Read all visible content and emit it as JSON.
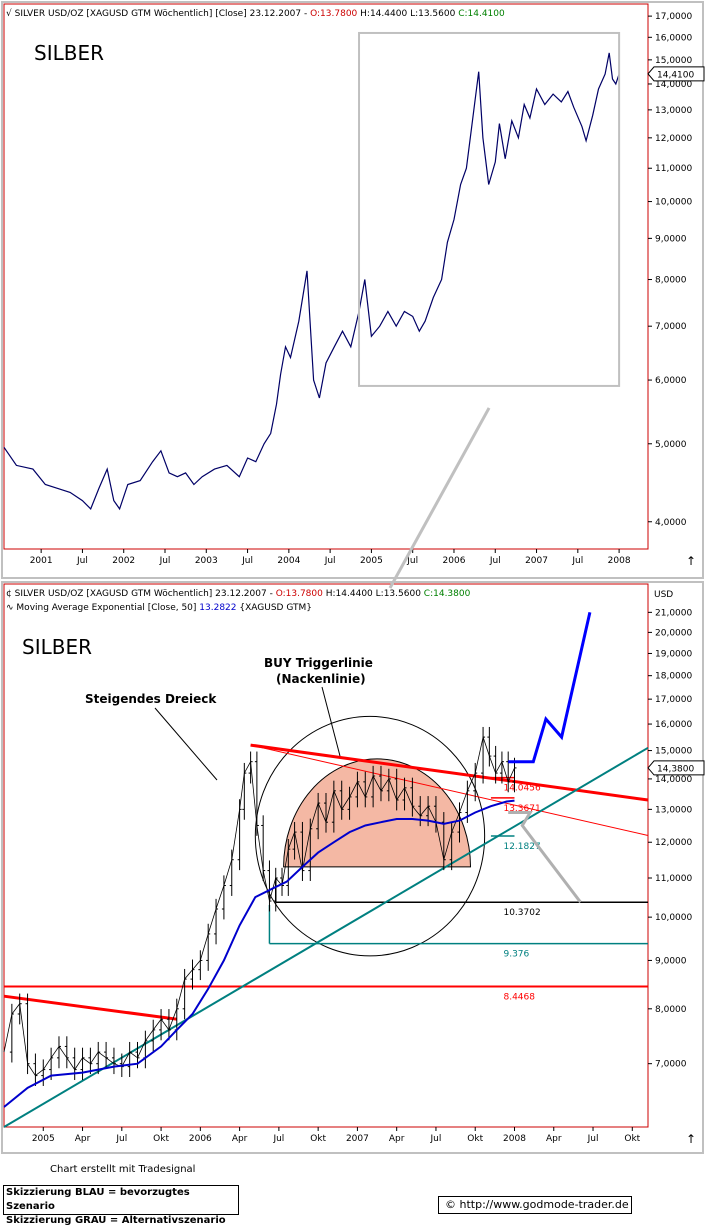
{
  "chart_data": [
    {
      "type": "line",
      "header": {
        "prefix": "SILVER USD/OZ [XAGUSD GTM  Wöchentlich] [Close] 23.12.2007 - ",
        "open": "O:13.7800",
        "high": "H:14.4400",
        "low": "L:13.5600",
        "close": "C:14.4100"
      },
      "label": "SILBER",
      "scale": "log",
      "ylim": [
        3.7,
        17.6
      ],
      "yticks": [
        "17,0000",
        "16,0000",
        "15,0000",
        "14,0000",
        "13,0000",
        "12,0000",
        "11,0000",
        "10,0000",
        "9,0000",
        "8,0000",
        "7,0000",
        "6,0000",
        "5,0000",
        "4,0000"
      ],
      "ytick_values": [
        17,
        16,
        15,
        14,
        13,
        12,
        11,
        10,
        9,
        8,
        7,
        6,
        5,
        4
      ],
      "last_price": "14,4100",
      "last_value": 14.41,
      "xticks": [
        "2001",
        "Jul",
        "2002",
        "Jul",
        "2003",
        "Jul",
        "2004",
        "Jul",
        "2005",
        "Jul",
        "2006",
        "Jul",
        "2007",
        "Jul",
        "2008"
      ],
      "xtick_years": [
        2001.0,
        2001.5,
        2002.0,
        2002.5,
        2003.0,
        2003.5,
        2004.0,
        2004.5,
        2005.0,
        2005.5,
        2006.0,
        2006.5,
        2007.0,
        2007.5,
        2008.0
      ],
      "xlim": [
        2000.55,
        2008.35
      ],
      "series_points": [
        [
          2000.55,
          4.95
        ],
        [
          2000.7,
          4.7
        ],
        [
          2000.9,
          4.65
        ],
        [
          2001.05,
          4.45
        ],
        [
          2001.2,
          4.4
        ],
        [
          2001.35,
          4.35
        ],
        [
          2001.5,
          4.25
        ],
        [
          2001.6,
          4.15
        ],
        [
          2001.7,
          4.4
        ],
        [
          2001.8,
          4.65
        ],
        [
          2001.88,
          4.25
        ],
        [
          2001.95,
          4.15
        ],
        [
          2002.05,
          4.45
        ],
        [
          2002.2,
          4.5
        ],
        [
          2002.35,
          4.75
        ],
        [
          2002.45,
          4.9
        ],
        [
          2002.55,
          4.6
        ],
        [
          2002.65,
          4.55
        ],
        [
          2002.75,
          4.6
        ],
        [
          2002.85,
          4.45
        ],
        [
          2002.95,
          4.55
        ],
        [
          2003.1,
          4.65
        ],
        [
          2003.25,
          4.7
        ],
        [
          2003.4,
          4.55
        ],
        [
          2003.5,
          4.8
        ],
        [
          2003.6,
          4.75
        ],
        [
          2003.7,
          5.0
        ],
        [
          2003.78,
          5.15
        ],
        [
          2003.85,
          5.6
        ],
        [
          2003.9,
          6.1
        ],
        [
          2003.96,
          6.6
        ],
        [
          2004.02,
          6.4
        ],
        [
          2004.12,
          7.1
        ],
        [
          2004.22,
          8.2
        ],
        [
          2004.3,
          6.0
        ],
        [
          2004.37,
          5.7
        ],
        [
          2004.45,
          6.3
        ],
        [
          2004.55,
          6.6
        ],
        [
          2004.65,
          6.9
        ],
        [
          2004.75,
          6.6
        ],
        [
          2004.85,
          7.3
        ],
        [
          2004.92,
          8.0
        ],
        [
          2005.0,
          6.8
        ],
        [
          2005.1,
          7.0
        ],
        [
          2005.2,
          7.3
        ],
        [
          2005.3,
          7.0
        ],
        [
          2005.4,
          7.3
        ],
        [
          2005.5,
          7.2
        ],
        [
          2005.58,
          6.9
        ],
        [
          2005.65,
          7.1
        ],
        [
          2005.75,
          7.6
        ],
        [
          2005.85,
          8.0
        ],
        [
          2005.92,
          8.9
        ],
        [
          2006.0,
          9.5
        ],
        [
          2006.08,
          10.5
        ],
        [
          2006.15,
          11.0
        ],
        [
          2006.22,
          12.5
        ],
        [
          2006.3,
          14.5
        ],
        [
          2006.35,
          12.0
        ],
        [
          2006.42,
          10.5
        ],
        [
          2006.5,
          11.2
        ],
        [
          2006.55,
          12.5
        ],
        [
          2006.62,
          11.3
        ],
        [
          2006.7,
          12.6
        ],
        [
          2006.78,
          12.0
        ],
        [
          2006.85,
          13.2
        ],
        [
          2006.92,
          12.7
        ],
        [
          2007.0,
          13.8
        ],
        [
          2007.1,
          13.2
        ],
        [
          2007.2,
          13.6
        ],
        [
          2007.3,
          13.3
        ],
        [
          2007.38,
          13.7
        ],
        [
          2007.45,
          13.1
        ],
        [
          2007.55,
          12.4
        ],
        [
          2007.6,
          11.9
        ],
        [
          2007.68,
          12.8
        ],
        [
          2007.75,
          13.8
        ],
        [
          2007.83,
          14.4
        ],
        [
          2007.88,
          15.3
        ],
        [
          2007.92,
          14.2
        ],
        [
          2007.96,
          14.0
        ],
        [
          2008.0,
          14.4
        ]
      ],
      "zoom_box": {
        "x0": 2004.85,
        "x1": 2008.0,
        "y0": 5.9,
        "y1": 16.2
      }
    },
    {
      "type": "line",
      "header": {
        "prefix": "SILVER USD/OZ [XAGUSD GTM  Wöchentlich] 23.12.2007 - ",
        "open": "O:13.7800",
        "high": "H:14.4400",
        "low": "L:13.5600",
        "close": "C:14.3800"
      },
      "indicator": {
        "prefix": "Moving Average Exponential [Close, 50] ",
        "value": "13.2822",
        "suffix": " {XAGUSD GTM}"
      },
      "label": "SILBER",
      "currency": "USD",
      "scale": "log",
      "ylim": [
        6.0,
        22.5
      ],
      "yticks": [
        "21,0000",
        "20,0000",
        "19,0000",
        "18,0000",
        "17,0000",
        "16,0000",
        "15,0000",
        "14,0000",
        "13,0000",
        "12,0000",
        "11,0000",
        "10,0000",
        "9,0000",
        "8,0000",
        "7,0000"
      ],
      "ytick_values": [
        21,
        20,
        19,
        18,
        17,
        16,
        15,
        14,
        13,
        12,
        11,
        10,
        9,
        8,
        7
      ],
      "last_price": "14,3800",
      "last_value": 14.38,
      "xticks": [
        "2005",
        "Apr",
        "Jul",
        "Okt",
        "2006",
        "Apr",
        "Jul",
        "Okt",
        "2007",
        "Apr",
        "Jul",
        "Okt",
        "2008",
        "Apr",
        "Jul",
        "Okt"
      ],
      "xtick_years": [
        2005.0,
        2005.25,
        2005.5,
        2005.75,
        2006.0,
        2006.25,
        2006.5,
        2006.75,
        2007.0,
        2007.25,
        2007.5,
        2007.75,
        2008.0,
        2008.25,
        2008.5,
        2008.75
      ],
      "xlim": [
        2004.75,
        2008.85
      ],
      "price_points": [
        [
          2004.75,
          7.2
        ],
        [
          2004.8,
          7.9
        ],
        [
          2004.85,
          8.1
        ],
        [
          2004.9,
          7.0
        ],
        [
          2004.95,
          6.8
        ],
        [
          2005.0,
          6.9
        ],
        [
          2005.05,
          7.1
        ],
        [
          2005.1,
          7.3
        ],
        [
          2005.15,
          7.1
        ],
        [
          2005.2,
          6.9
        ],
        [
          2005.25,
          7.1
        ],
        [
          2005.3,
          7.0
        ],
        [
          2005.35,
          7.2
        ],
        [
          2005.4,
          7.1
        ],
        [
          2005.45,
          7.0
        ],
        [
          2005.5,
          6.95
        ],
        [
          2005.55,
          7.2
        ],
        [
          2005.6,
          7.1
        ],
        [
          2005.65,
          7.4
        ],
        [
          2005.7,
          7.6
        ],
        [
          2005.75,
          7.8
        ],
        [
          2005.8,
          7.6
        ],
        [
          2005.85,
          8.0
        ],
        [
          2005.9,
          8.6
        ],
        [
          2005.95,
          8.8
        ],
        [
          2006.0,
          9.0
        ],
        [
          2006.05,
          9.6
        ],
        [
          2006.1,
          10.2
        ],
        [
          2006.15,
          10.8
        ],
        [
          2006.2,
          11.5
        ],
        [
          2006.25,
          13.0
        ],
        [
          2006.28,
          14.2
        ],
        [
          2006.32,
          14.6
        ],
        [
          2006.36,
          12.5
        ],
        [
          2006.4,
          11.2
        ],
        [
          2006.44,
          10.4
        ],
        [
          2006.48,
          11.0
        ],
        [
          2006.52,
          10.8
        ],
        [
          2006.56,
          11.8
        ],
        [
          2006.6,
          12.3
        ],
        [
          2006.65,
          11.2
        ],
        [
          2006.7,
          12.4
        ],
        [
          2006.75,
          13.2
        ],
        [
          2006.8,
          12.6
        ],
        [
          2006.85,
          13.6
        ],
        [
          2006.9,
          13.0
        ],
        [
          2006.95,
          13.4
        ],
        [
          2007.0,
          13.9
        ],
        [
          2007.05,
          13.4
        ],
        [
          2007.1,
          14.1
        ],
        [
          2007.15,
          13.6
        ],
        [
          2007.2,
          14.0
        ],
        [
          2007.25,
          13.3
        ],
        [
          2007.3,
          13.7
        ],
        [
          2007.35,
          13.1
        ],
        [
          2007.4,
          12.8
        ],
        [
          2007.45,
          13.1
        ],
        [
          2007.5,
          12.6
        ],
        [
          2007.55,
          11.5
        ],
        [
          2007.6,
          12.3
        ],
        [
          2007.65,
          12.9
        ],
        [
          2007.7,
          13.6
        ],
        [
          2007.75,
          14.2
        ],
        [
          2007.8,
          15.5
        ],
        [
          2007.84,
          14.8
        ],
        [
          2007.88,
          14.2
        ],
        [
          2007.92,
          14.6
        ],
        [
          2007.96,
          13.9
        ],
        [
          2008.0,
          14.38
        ]
      ],
      "ema_points": [
        [
          2004.75,
          6.3
        ],
        [
          2004.9,
          6.6
        ],
        [
          2005.05,
          6.8
        ],
        [
          2005.25,
          6.85
        ],
        [
          2005.45,
          6.95
        ],
        [
          2005.6,
          7.0
        ],
        [
          2005.75,
          7.3
        ],
        [
          2005.85,
          7.6
        ],
        [
          2005.95,
          7.9
        ],
        [
          2006.05,
          8.4
        ],
        [
          2006.15,
          9.0
        ],
        [
          2006.25,
          9.8
        ],
        [
          2006.35,
          10.5
        ],
        [
          2006.45,
          10.7
        ],
        [
          2006.55,
          10.9
        ],
        [
          2006.65,
          11.3
        ],
        [
          2006.75,
          11.7
        ],
        [
          2006.85,
          12.0
        ],
        [
          2006.95,
          12.3
        ],
        [
          2007.05,
          12.5
        ],
        [
          2007.15,
          12.6
        ],
        [
          2007.25,
          12.7
        ],
        [
          2007.35,
          12.7
        ],
        [
          2007.45,
          12.65
        ],
        [
          2007.55,
          12.55
        ],
        [
          2007.65,
          12.65
        ],
        [
          2007.75,
          12.9
        ],
        [
          2007.85,
          13.1
        ],
        [
          2007.95,
          13.25
        ],
        [
          2008.0,
          13.28
        ]
      ],
      "scenario_blue": [
        [
          2007.96,
          14.6
        ],
        [
          2008.12,
          14.6
        ],
        [
          2008.2,
          16.2
        ],
        [
          2008.3,
          15.5
        ],
        [
          2008.48,
          21.0
        ]
      ],
      "scenario_grey": [
        [
          2007.96,
          12.9
        ],
        [
          2008.1,
          12.9
        ],
        [
          2008.05,
          12.5
        ],
        [
          2008.42,
          10.37
        ]
      ],
      "trend_lines": [
        {
          "name": "descending-resistance",
          "color": "#ff0000",
          "width": 3,
          "points": [
            [
              2006.32,
              15.2
            ],
            [
              2008.85,
              13.3
            ]
          ]
        },
        {
          "name": "thin-resistance",
          "color": "#ff0000",
          "width": 1,
          "points": [
            [
              2006.32,
              15.2
            ],
            [
              2008.85,
              12.2
            ]
          ]
        },
        {
          "name": "old-resistance",
          "color": "#ff0000",
          "width": 3,
          "points": [
            [
              2004.75,
              8.25
            ],
            [
              2005.85,
              7.8
            ]
          ]
        },
        {
          "name": "support-line",
          "color": "#008080",
          "width": 2,
          "points": [
            [
              2004.75,
              6.0
            ],
            [
              2008.85,
              15.1
            ]
          ]
        }
      ],
      "levels": [
        {
          "label": "14.0456",
          "value": 14.0456,
          "color": "#ff0000",
          "x0": 2007.85,
          "x1": 2008.0
        },
        {
          "label": "13.3671",
          "value": 13.3671,
          "color": "#ff0000",
          "x0": 2007.85,
          "x1": 2008.0
        },
        {
          "label": "12.1827",
          "value": 12.1827,
          "color": "#008080",
          "x0": 2007.85,
          "x1": 2008.0
        },
        {
          "label": "10.3702",
          "value": 10.3702,
          "color": "#000000",
          "x0": 2006.48,
          "x1": 2008.85
        },
        {
          "label": "9.376",
          "value": 9.376,
          "color": "#008080",
          "x0": 2006.44,
          "x1": 2008.85
        },
        {
          "label": "8.4468",
          "value": 8.4468,
          "color": "#ff0000",
          "x0": 2004.75,
          "x1": 2008.85
        }
      ],
      "annotations": {
        "steigendes_dreieck": "Steigendes Dreieck",
        "buy_trigger_1": "BUY Triggerlinie",
        "buy_trigger_2": "(Nackenlinie)"
      },
      "big_ellipse": {
        "cx": 2007.08,
        "cy": 11.8,
        "rx": 0.73,
        "ry_top": 16.3,
        "ry_bottom": 9.1
      },
      "head_shoulder_area": {
        "x0": 2006.53,
        "x1": 2007.72,
        "base": 11.3,
        "top": 14.7
      }
    }
  ],
  "footer": {
    "chart_credit": "Chart erstellt mit Tradesignal",
    "legend_blue": "Skizzierung BLAU = bevorzugtes Szenario",
    "legend_grey": "Skizzierung GRAU = Alternativszenario",
    "copyright_symbol": "©",
    "url": "http://www.godmode-trader.de"
  },
  "colors": {
    "frame_red": "#cc0000",
    "frame_grey": "#c0c0c0",
    "price_line": "#000066",
    "ema_line": "#0000cc",
    "scenario_blue": "#0000ff",
    "scenario_grey": "#b0b0b0",
    "ohlc_red": "#cc0000",
    "ohlc_green": "#008000",
    "area_fill": "#f4b8a4"
  }
}
